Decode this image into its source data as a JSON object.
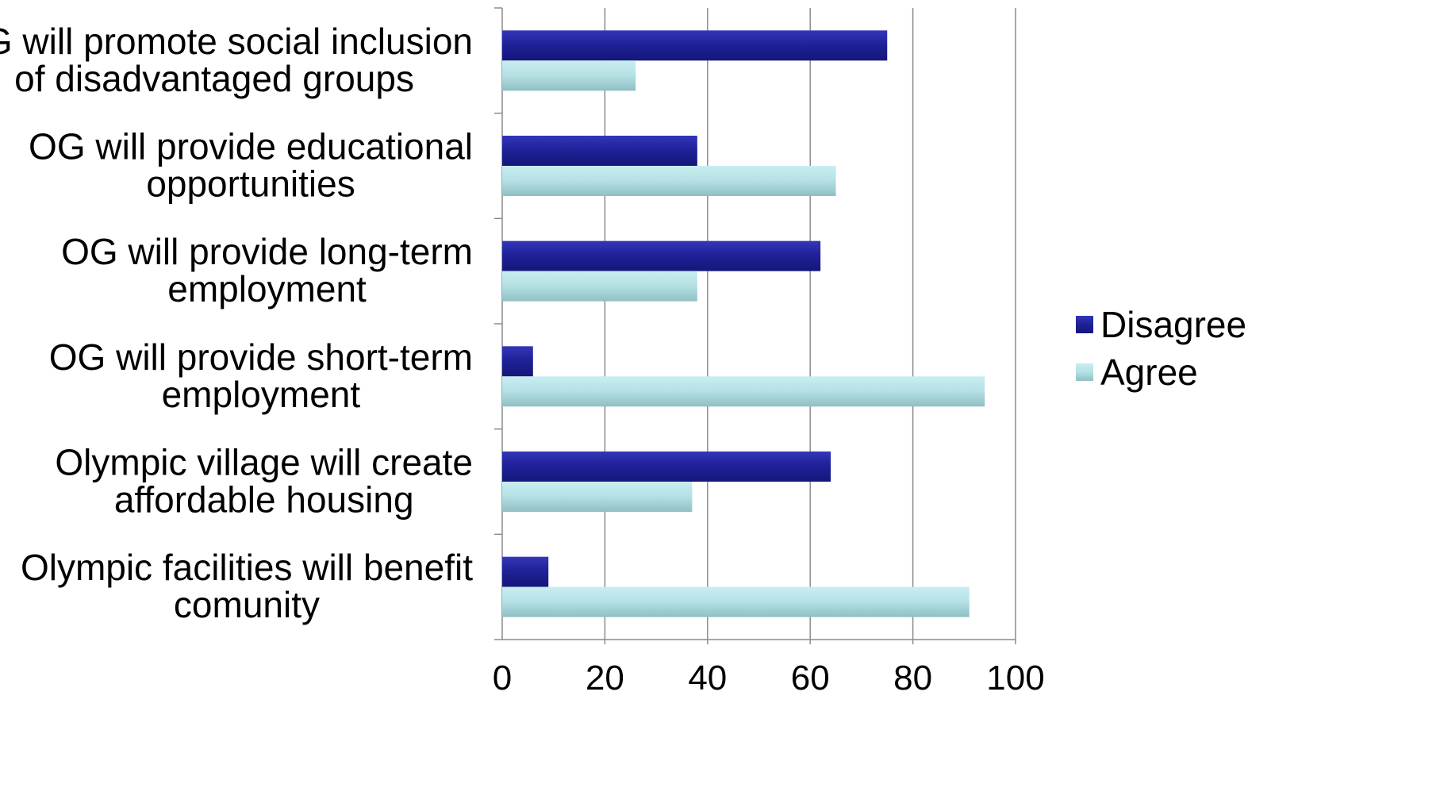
{
  "chart_data": {
    "type": "bar",
    "orientation": "horizontal",
    "categories": [
      [
        "OG will promote social inclusion",
        "of disadvantaged groups"
      ],
      [
        "OG will provide educational",
        "opportunities"
      ],
      [
        "OG will provide long-term",
        "employment"
      ],
      [
        "OG will provide short-term",
        "employment"
      ],
      [
        "Olympic village will create",
        "affordable housing"
      ],
      [
        "Olympic facilities will benefit",
        "comunity"
      ]
    ],
    "series": [
      {
        "name": "Disagree",
        "color": "#1e2096",
        "values": [
          75,
          38,
          62,
          6,
          64,
          9
        ]
      },
      {
        "name": "Agree",
        "color": "#b4e0e4",
        "values": [
          26,
          65,
          38,
          94,
          37,
          91
        ]
      }
    ],
    "xlim": [
      0,
      100
    ],
    "xticks": [
      "0",
      "20",
      "40",
      "60",
      "80",
      "100"
    ],
    "grid": true,
    "legend_position": "right"
  }
}
